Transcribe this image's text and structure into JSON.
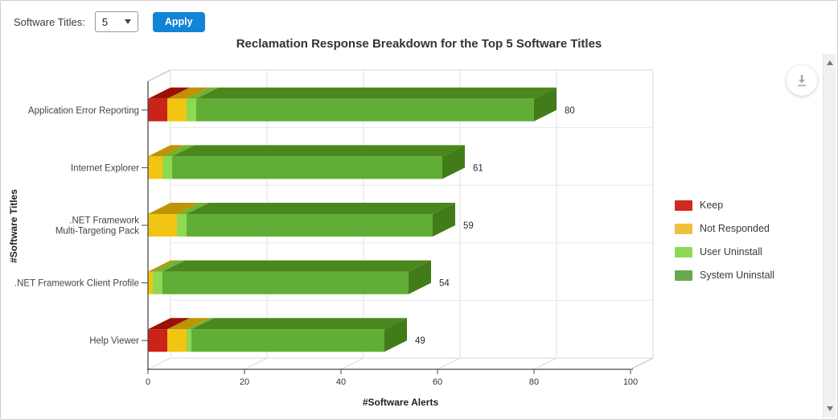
{
  "controls": {
    "label": "Software Titles:",
    "dropdown_value": "5",
    "apply_label": "Apply",
    "apply_color": "#1184d7"
  },
  "chart_data": {
    "type": "bar",
    "orientation": "horizontal",
    "stacked": true,
    "style": "3d",
    "title": "Reclamation Response Breakdown for the Top 5 Software Titles",
    "xlabel": "#Software Alerts",
    "ylabel": "#Software Titles",
    "xlim": [
      0,
      100
    ],
    "xticks": [
      0,
      20,
      40,
      60,
      80,
      100
    ],
    "grid": true,
    "legend_position": "right",
    "categories": [
      "Application Error Reporting",
      "Internet Explorer",
      ".NET Framework Multi-Targeting Pack",
      ".NET Framework Client Profile",
      "Help Viewer"
    ],
    "category_display": [
      [
        "Application Error Reporting"
      ],
      [
        "Internet Explorer"
      ],
      [
        ".NET Framework",
        "Multi-Targeting Pack"
      ],
      [
        ".NET Framework Client Profile"
      ],
      [
        "Help Viewer"
      ]
    ],
    "series": [
      {
        "name": "Keep",
        "color": "#d2291e",
        "front": "#ca2318",
        "top": "#9c1105",
        "side": "#8e0e04",
        "values": [
          4,
          0,
          0,
          0,
          4
        ]
      },
      {
        "name": "Not Responded",
        "color": "#ecc13b",
        "front": "#f1c512",
        "top": "#bf9303",
        "side": "#b08700",
        "values": [
          4,
          3,
          6,
          1,
          4
        ]
      },
      {
        "name": "User Uninstall",
        "color": "#8ed952",
        "front": "#8ed952",
        "top": "#6fb234",
        "side": "#65a72e",
        "values": [
          2,
          2,
          2,
          2,
          1
        ]
      },
      {
        "name": "System Uninstall",
        "color": "#6aa84e",
        "front": "#61ae36",
        "top": "#4a881e",
        "side": "#427c1a",
        "values": [
          70,
          56,
          51,
          51,
          40
        ]
      }
    ],
    "totals": [
      80,
      61,
      59,
      54,
      49
    ]
  },
  "colors": {
    "axis": "#4a4a4a",
    "grid_vertical": "#e2e2e2",
    "grid_horizontal": "#e8e8e8",
    "wall_edge": "#d8d8d8",
    "floor_diag": "#d9d9d9",
    "tick_label": "#333333",
    "category_label": "#444444",
    "value_label": "#2b2b2b",
    "axis_title": "#1f1f1f"
  }
}
